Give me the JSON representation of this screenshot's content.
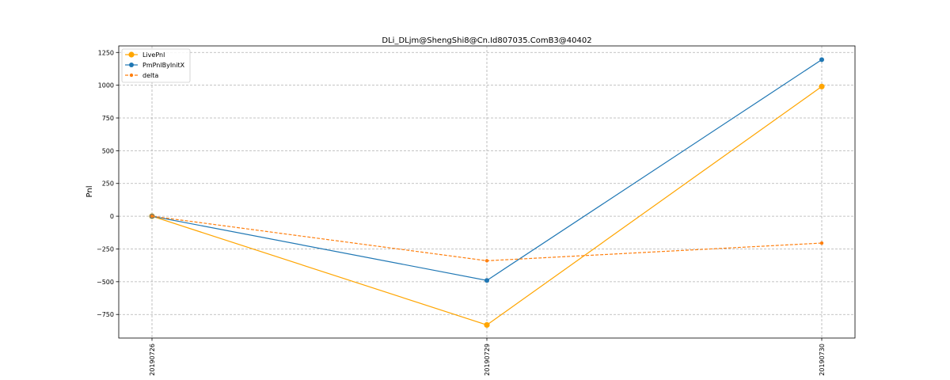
{
  "chart_data": {
    "type": "line",
    "title": "DLi_DLjm@ShengShi8@Cn.Id807035.ComB3@40402",
    "xlabel": "",
    "ylabel": "Pnl",
    "categories": [
      "20190726",
      "20190729",
      "20190730"
    ],
    "yticks": [
      -750,
      -500,
      -250,
      0,
      250,
      500,
      750,
      1000,
      1250
    ],
    "ylim": [
      -930,
      1300
    ],
    "grid": true,
    "legend_position": "top-left",
    "series": [
      {
        "name": "LivePnl",
        "values": [
          0,
          -830,
          990
        ],
        "color": "#ffa500",
        "style": "solid",
        "marker": "circle-large"
      },
      {
        "name": "PmPnlByInitX",
        "values": [
          0,
          -490,
          1195
        ],
        "color": "#1f77b4",
        "style": "solid",
        "marker": "circle"
      },
      {
        "name": "delta",
        "values": [
          0,
          -340,
          -205
        ],
        "color": "#ff7f0e",
        "style": "dashed",
        "marker": "circle-small"
      }
    ]
  }
}
